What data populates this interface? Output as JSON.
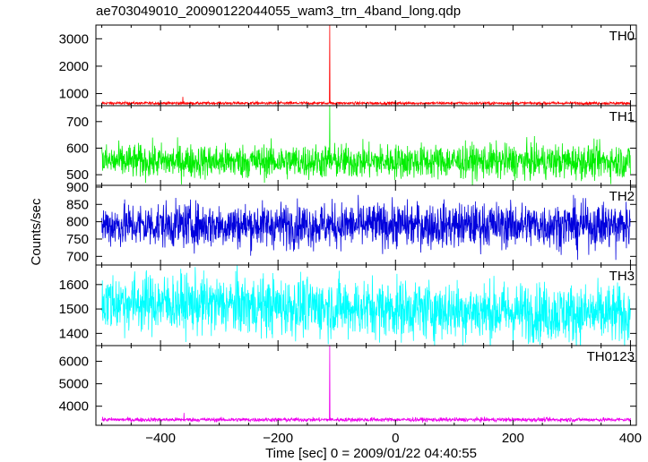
{
  "title": "ae703049010_20090122044055_wam3_trn_4band_long.qdp",
  "chart_data": {
    "type": "line",
    "xlabel": "Time [sec] 0 = 2009/01/22 04:40:55",
    "ylabel": "Counts/sec",
    "xlim": [
      -510,
      410
    ],
    "x_ticks": [
      -400,
      -200,
      0,
      200,
      400
    ],
    "x_tick_labels": [
      "−400",
      "−200",
      "0",
      "200",
      "400"
    ],
    "panels": [
      {
        "name": "TH0",
        "color": "#ff0000",
        "ylim": [
          560,
          3500
        ],
        "y_ticks": [
          1000,
          2000,
          3000
        ],
        "baseline": 650,
        "noise": 25,
        "spikes": [
          {
            "x": -362,
            "y": 880
          },
          {
            "x": -112,
            "y": 3500
          }
        ]
      },
      {
        "name": "TH1",
        "color": "#00ee00",
        "ylim": [
          460,
          760
        ],
        "y_ticks": [
          500,
          600,
          700
        ],
        "baseline": 550,
        "noise": 32,
        "spikes": [
          {
            "x": -112,
            "y": 760
          }
        ]
      },
      {
        "name": "TH2",
        "color": "#0000dd",
        "ylim": [
          675,
          905
        ],
        "y_ticks": [
          700,
          750,
          800,
          850,
          900
        ],
        "baseline": 790,
        "noise": 32,
        "spikes": [
          {
            "x": 310,
            "y": 690
          },
          {
            "x": 375,
            "y": 690
          }
        ]
      },
      {
        "name": "TH3",
        "color": "#00ffff",
        "ylim": [
          1350,
          1680
        ],
        "y_ticks": [
          1400,
          1500,
          1600
        ],
        "baseline": 1500,
        "noise": 60,
        "spikes": []
      },
      {
        "name": "TH0123",
        "color": "#ee00ee",
        "ylim": [
          3150,
          6700
        ],
        "y_ticks": [
          4000,
          5000,
          6000
        ],
        "baseline": 3400,
        "noise": 45,
        "spikes": [
          {
            "x": -360,
            "y": 3700
          },
          {
            "x": -112,
            "y": 6700
          }
        ]
      }
    ]
  }
}
